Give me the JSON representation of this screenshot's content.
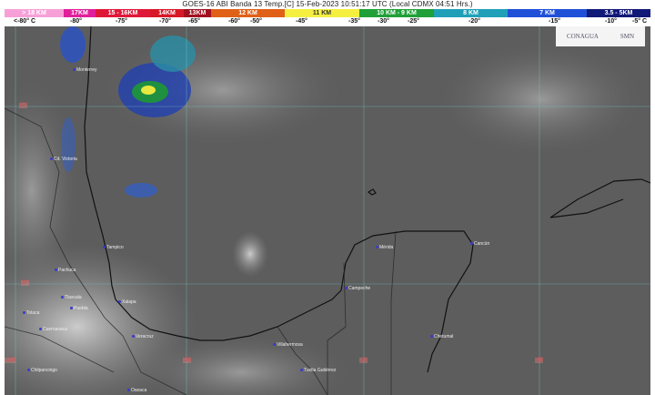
{
  "title": "GOES-16 ABI Banda 13 Temp.[C] 15-Feb-2023 10:51:17 UTC (Local CDMX  04:51 Hrs.)",
  "legend": [
    {
      "label": "> 18 KM",
      "color": "#f7a0d8"
    },
    {
      "label": "17KM",
      "color": "#e0209a"
    },
    {
      "label": "15 - 16KM",
      "color": "#e01838"
    },
    {
      "label": "14KM",
      "color": "#d81828"
    },
    {
      "label": "13KM",
      "color": "#a01020"
    },
    {
      "label": "12 KM",
      "color": "#e06018"
    },
    {
      "label": "11 KM",
      "color": "#f5f040"
    },
    {
      "label": "10 KM - 9 KM",
      "color": "#20a038"
    },
    {
      "label": "8 KM",
      "color": "#20a0b8"
    },
    {
      "label": "7 KM",
      "color": "#2050d8"
    },
    {
      "label": "3.5 - 5KM",
      "color": "#101878"
    }
  ],
  "temps": [
    "<-80° C",
    "-80°",
    "-75°",
    "-70°",
    "-65°",
    "-60°",
    "-50°",
    "-45°",
    "-35°",
    "-30°",
    "-25°",
    "-20°",
    "-15°",
    "-10°",
    "-5° C"
  ],
  "logos": {
    "conagua": "CONAGUA",
    "smn": "SMN"
  },
  "grid_labels": {
    "lat": [
      "25°",
      "20°"
    ],
    "lon": [
      "-100",
      "-95",
      "-90",
      "-85"
    ]
  },
  "cities": [
    "Mérida",
    "Cancún",
    "Campeche",
    "Chetumal",
    "Cd. Victoria",
    "Monterrey",
    "Tampico",
    "Pachuca",
    "Toluca",
    "Tlaxcala",
    "Puebla",
    "Cuernavaca",
    "Xalapa",
    "Veracruz",
    "Villahermosa",
    "Chilpancingo",
    "Oaxaca",
    "Tuxtla Gutiérrez"
  ]
}
